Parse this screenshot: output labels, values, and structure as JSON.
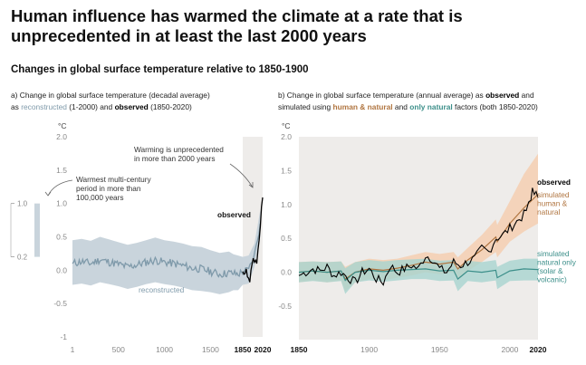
{
  "title": "Human influence has warmed the climate at a rate that is unprecedented in at least the last 2000 years",
  "subtitle": "Changes in global surface temperature relative to 1850-1900",
  "colors": {
    "reconstructed": "#7f9aaa",
    "reconstructed_band": "#c9d4dc",
    "observed": "#000000",
    "human_natural": "#b07540",
    "human_natural_band": "#f5cfb2",
    "natural_only": "#3c8f8a",
    "natural_only_band": "#a8d5d0",
    "background_shade": "#eeecea",
    "multi_century_bar": "#c9d4dc"
  },
  "chart_data": [
    {
      "type": "line",
      "panel_label_parts": [
        {
          "text": "a) Change in global surface temperature (decadal average)",
          "color": "#222222"
        },
        {
          "text": "as ",
          "color": "#222222"
        },
        {
          "text": "reconstructed",
          "color": "#7f9aaa"
        },
        {
          "text": " (1-2000) and ",
          "color": "#222222"
        },
        {
          "text": "observed",
          "color": "#000000",
          "bold": true
        },
        {
          "text": " (1850-2020)",
          "color": "#222222"
        }
      ],
      "unit": "°C",
      "xlim": [
        1,
        2020
      ],
      "ylim": [
        -1,
        2
      ],
      "y_ticks": [
        "2.0",
        "1.5",
        "1.0",
        "0.5",
        "0.0",
        "-0.5",
        "-1"
      ],
      "y_tick_values": [
        2.0,
        1.5,
        1.0,
        0.5,
        0.0,
        -0.5,
        -1.0
      ],
      "x_ticks": [
        {
          "value": 1,
          "label": "1",
          "bold": false
        },
        {
          "value": 500,
          "label": "500",
          "bold": false
        },
        {
          "value": 1000,
          "label": "1000",
          "bold": false
        },
        {
          "value": 1500,
          "label": "1500",
          "bold": false
        },
        {
          "value": 1850,
          "label": "1850",
          "bold": true
        },
        {
          "value": 2020,
          "label": "2020",
          "bold": true
        }
      ],
      "shaded_period": [
        1850,
        2020
      ],
      "reconstructed": {
        "name": "reconstructed",
        "x": [
          1,
          100,
          200,
          300,
          400,
          500,
          600,
          700,
          800,
          900,
          1000,
          1100,
          1200,
          1300,
          1400,
          1500,
          1600,
          1700,
          1750,
          1800,
          1850,
          1900,
          1950,
          2000
        ],
        "y": [
          0.1,
          0.13,
          0.1,
          0.16,
          0.12,
          0.09,
          0.05,
          0.08,
          0.12,
          0.15,
          0.12,
          0.1,
          0.07,
          0.03,
          0.02,
          -0.02,
          -0.06,
          -0.04,
          -0.05,
          -0.06,
          -0.02,
          0.0,
          0.22,
          0.7
        ],
        "lower": [
          -0.22,
          -0.2,
          -0.23,
          -0.18,
          -0.21,
          -0.24,
          -0.28,
          -0.25,
          -0.21,
          -0.18,
          -0.21,
          -0.23,
          -0.26,
          -0.3,
          -0.31,
          -0.33,
          -0.36,
          -0.33,
          -0.3,
          -0.3,
          -0.22,
          -0.2,
          0.05,
          0.5
        ],
        "upper": [
          0.45,
          0.47,
          0.44,
          0.5,
          0.46,
          0.42,
          0.38,
          0.41,
          0.45,
          0.49,
          0.45,
          0.43,
          0.4,
          0.36,
          0.35,
          0.3,
          0.26,
          0.28,
          0.24,
          0.22,
          0.2,
          0.22,
          0.4,
          0.9
        ]
      },
      "observed": {
        "name": "observed",
        "x": [
          1850,
          1860,
          1870,
          1880,
          1890,
          1900,
          1910,
          1920,
          1930,
          1940,
          1950,
          1960,
          1970,
          1980,
          1990,
          2000,
          2010,
          2020
        ],
        "y": [
          -0.02,
          -0.06,
          -0.05,
          0.02,
          -0.1,
          -0.12,
          -0.18,
          0.0,
          0.1,
          0.18,
          0.12,
          0.15,
          0.1,
          0.3,
          0.45,
          0.65,
          0.95,
          1.09
        ]
      },
      "multi_century_range": {
        "low": 0.2,
        "high": 1.0,
        "labels": [
          "1.0",
          "0.2"
        ]
      },
      "annotations": [
        {
          "text": [
            "Warming is unprecedented",
            "in more than 2000 years"
          ]
        },
        {
          "text": [
            "Warmest multi-century",
            "period in more than",
            "100,000 years"
          ]
        },
        {
          "text": [
            "observed"
          ],
          "bold": true
        },
        {
          "text": [
            "reconstructed"
          ]
        }
      ]
    },
    {
      "type": "line",
      "panel_label_parts": [
        {
          "text": "b) Change in global surface temperature (annual average) as ",
          "color": "#222222"
        },
        {
          "text": "observed",
          "color": "#000000",
          "bold": true
        },
        {
          "text": " and",
          "color": "#222222"
        },
        {
          "text": "simulated using ",
          "color": "#222222"
        },
        {
          "text": "human & natural",
          "color": "#b07540",
          "bold": true
        },
        {
          "text": " and ",
          "color": "#222222"
        },
        {
          "text": "only natural",
          "color": "#3c8f8a",
          "bold": true
        },
        {
          "text": " factors (both 1850-2020)",
          "color": "#222222"
        }
      ],
      "unit": "°C",
      "xlim": [
        1850,
        2020
      ],
      "ylim": [
        -0.5,
        2
      ],
      "y_ticks": [
        "2.0",
        "1.5",
        "1.0",
        "0.5",
        "0.0",
        "-0.5"
      ],
      "y_tick_values": [
        2.0,
        1.5,
        1.0,
        0.5,
        0.0,
        -0.5
      ],
      "x_ticks": [
        {
          "value": 1850,
          "label": "1850",
          "bold": true
        },
        {
          "value": 1900,
          "label": "1900",
          "bold": false
        },
        {
          "value": 1950,
          "label": "1950",
          "bold": false
        },
        {
          "value": 2000,
          "label": "2000",
          "bold": false
        },
        {
          "value": 2020,
          "label": "2020",
          "bold": true
        }
      ],
      "series": [
        {
          "name": "simulated human & natural",
          "x": [
            1850,
            1860,
            1870,
            1880,
            1883,
            1890,
            1900,
            1910,
            1920,
            1930,
            1940,
            1950,
            1960,
            1963,
            1970,
            1980,
            1990,
            1991,
            2000,
            2010,
            2020
          ],
          "y": [
            0.0,
            0.02,
            0.0,
            0.02,
            -0.1,
            0.0,
            0.05,
            0.03,
            0.06,
            0.1,
            0.15,
            0.12,
            0.15,
            0.05,
            0.18,
            0.33,
            0.52,
            0.45,
            0.72,
            0.95,
            1.15
          ],
          "lower": [
            -0.15,
            -0.12,
            -0.15,
            -0.12,
            -0.28,
            -0.15,
            -0.1,
            -0.12,
            -0.08,
            -0.05,
            0.0,
            -0.03,
            0.0,
            -0.12,
            0.02,
            0.15,
            0.3,
            0.22,
            0.45,
            0.6,
            0.72
          ],
          "upper": [
            0.15,
            0.16,
            0.15,
            0.16,
            0.08,
            0.15,
            0.2,
            0.18,
            0.2,
            0.25,
            0.3,
            0.27,
            0.3,
            0.22,
            0.36,
            0.55,
            0.78,
            0.7,
            1.05,
            1.45,
            1.75
          ]
        },
        {
          "name": "simulated natural only",
          "x": [
            1850,
            1860,
            1870,
            1880,
            1883,
            1890,
            1900,
            1910,
            1920,
            1930,
            1940,
            1950,
            1960,
            1963,
            1970,
            1980,
            1990,
            1991,
            2000,
            2010,
            2020
          ],
          "y": [
            0.0,
            0.02,
            0.0,
            0.02,
            -0.12,
            0.0,
            0.03,
            0.01,
            0.03,
            0.04,
            0.05,
            0.02,
            0.03,
            -0.1,
            0.02,
            0.0,
            0.03,
            -0.08,
            0.02,
            0.05,
            0.04
          ],
          "lower": [
            -0.15,
            -0.13,
            -0.15,
            -0.13,
            -0.32,
            -0.15,
            -0.12,
            -0.14,
            -0.12,
            -0.1,
            -0.1,
            -0.13,
            -0.12,
            -0.28,
            -0.13,
            -0.15,
            -0.12,
            -0.25,
            -0.13,
            -0.12,
            -0.12
          ],
          "upper": [
            0.15,
            0.16,
            0.15,
            0.16,
            0.06,
            0.15,
            0.18,
            0.16,
            0.18,
            0.19,
            0.2,
            0.17,
            0.18,
            0.07,
            0.17,
            0.15,
            0.18,
            0.08,
            0.17,
            0.2,
            0.2
          ]
        },
        {
          "name": "observed",
          "x": [
            1850,
            1855,
            1860,
            1865,
            1870,
            1875,
            1880,
            1885,
            1890,
            1895,
            1900,
            1905,
            1910,
            1915,
            1920,
            1925,
            1930,
            1935,
            1940,
            1945,
            1950,
            1955,
            1960,
            1965,
            1970,
            1975,
            1980,
            1985,
            1990,
            1995,
            2000,
            2005,
            2010,
            2015,
            2016,
            2020
          ],
          "y": [
            -0.05,
            0.0,
            0.05,
            0.02,
            0.08,
            -0.05,
            0.0,
            -0.08,
            -0.15,
            0.0,
            0.05,
            -0.1,
            -0.15,
            0.1,
            0.0,
            0.05,
            0.1,
            0.05,
            0.25,
            0.2,
            0.05,
            0.0,
            0.15,
            0.1,
            0.15,
            0.2,
            0.35,
            0.3,
            0.5,
            0.55,
            0.65,
            0.75,
            0.85,
            1.05,
            1.25,
            1.1
          ]
        }
      ],
      "legend_labels": [
        {
          "lines": [
            "observed"
          ],
          "color": "#000000",
          "bold": true
        },
        {
          "lines": [
            "simulated",
            "human &",
            "natural"
          ],
          "color": "#b07540"
        },
        {
          "lines": [
            "simulated",
            "natural only",
            "(solar &",
            "volcanic)"
          ],
          "color": "#3c8f8a"
        }
      ]
    }
  ]
}
